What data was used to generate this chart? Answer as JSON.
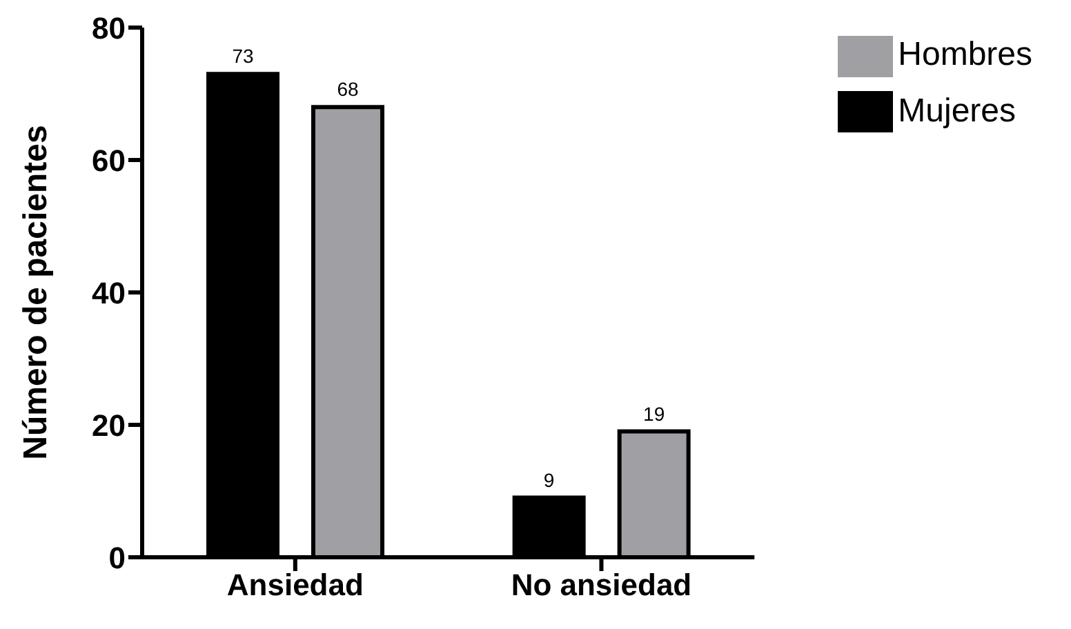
{
  "chart_data": {
    "type": "bar",
    "ylabel": "Número de pacientes",
    "categories": [
      "Ansiedad",
      "No ansiedad"
    ],
    "series": [
      {
        "name": "Mujeres",
        "color": "#000000",
        "values": [
          73,
          9
        ]
      },
      {
        "name": "Hombres",
        "color": "#a0a0a4",
        "values": [
          68,
          19
        ]
      }
    ],
    "ylim": [
      0,
      80
    ],
    "yticks": [
      0,
      20,
      40,
      60,
      80
    ],
    "grid": false,
    "legend": "top right",
    "data_labels": true
  }
}
